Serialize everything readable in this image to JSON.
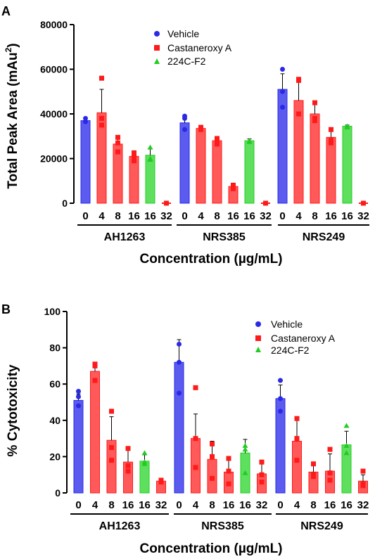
{
  "panels": [
    {
      "letter": "A",
      "ylabel_main": "Total Peak Area (mAu",
      "ylabel_sup": "2",
      "ylabel_end": ")",
      "xlabel": "Concentration (µg/mL)",
      "legend": [
        "Vehicle",
        "Castaneroxy A",
        "224C-F2"
      ]
    },
    {
      "letter": "B",
      "ylabel": "% Cytotoxicity",
      "xlabel": "Concentration (µg/mL)",
      "legend": [
        "Vehicle",
        "Castaneroxy A",
        "224C-F2"
      ]
    }
  ],
  "colors": {
    "vehicle": "#2a2ae6",
    "castaneroxy": "#ff1a1a",
    "f2": "#22cc22"
  },
  "chart_data": [
    {
      "type": "bar",
      "ylabel": "Total Peak Area (mAu²)",
      "xlabel": "Concentration (µg/mL)",
      "ylim": [
        0,
        80000
      ],
      "yticks": [
        0,
        20000,
        40000,
        60000,
        80000
      ],
      "legend_position": "top-center",
      "groups": [
        "AH1263",
        "NRS385",
        "NRS249"
      ],
      "tick_labels": [
        "0",
        "4",
        "8",
        "16",
        "16",
        "32"
      ],
      "series_order": [
        "Vehicle",
        "Castaneroxy A",
        "Castaneroxy A",
        "Castaneroxy A",
        "224C-F2",
        "Castaneroxy A"
      ],
      "values": [
        [
          37000,
          40500,
          26500,
          21000,
          21500,
          0
        ],
        [
          36000,
          33500,
          28000,
          7500,
          28000,
          0
        ],
        [
          51000,
          46000,
          40000,
          29500,
          34500,
          0
        ]
      ],
      "errors": [
        [
          1000,
          10500,
          3500,
          2500,
          3000,
          0
        ],
        [
          3000,
          700,
          1500,
          1500,
          800,
          0
        ],
        [
          7000,
          10000,
          4500,
          4000,
          500,
          0
        ]
      ],
      "points": [
        [
          [
            36500,
            38000
          ],
          [
            38000,
            56000,
            35000
          ],
          [
            27000,
            29500,
            23000
          ],
          [
            22500,
            19000,
            21000
          ],
          [
            25000,
            20000,
            19500
          ],
          [
            0
          ]
        ],
        [
          [
            38000,
            39000,
            33000
          ],
          [
            34000,
            33000
          ],
          [
            28000,
            29000,
            26500
          ],
          [
            8000,
            6500,
            7500
          ],
          [
            28000,
            27500
          ],
          [
            0
          ]
        ],
        [
          [
            60000,
            50000,
            43000
          ],
          [
            55500,
            55000,
            40000
          ],
          [
            45000,
            38000,
            37000
          ],
          [
            33000,
            27000,
            28500
          ],
          [
            34500,
            34000
          ],
          [
            0
          ]
        ]
      ]
    },
    {
      "type": "bar",
      "ylabel": "% Cytotoxicity",
      "xlabel": "Concentration (µg/mL)",
      "ylim": [
        0,
        100
      ],
      "yticks": [
        0,
        20,
        40,
        60,
        80,
        100
      ],
      "legend_position": "top-right",
      "groups": [
        "AH1263",
        "NRS385",
        "NRS249"
      ],
      "tick_labels": [
        "0",
        "4",
        "8",
        "16",
        "16",
        "32"
      ],
      "series_order": [
        "Vehicle",
        "Castaneroxy A",
        "Castaneroxy A",
        "Castaneroxy A",
        "224C-F2",
        "Castaneroxy A"
      ],
      "values": [
        [
          51,
          67,
          29,
          17,
          17.5,
          6.5
        ],
        [
          72,
          30,
          18.5,
          11.5,
          22,
          10.5
        ],
        [
          52,
          28.5,
          11.5,
          12,
          26.5,
          6.5
        ]
      ],
      "errors": [
        [
          3.5,
          4.5,
          13,
          7.5,
          3.5,
          0.5
        ],
        [
          12.5,
          13.5,
          10,
          8.5,
          7.5,
          7.5
        ],
        [
          7.5,
          12,
          4,
          9.5,
          7.5,
          3.5
        ]
      ],
      "points": [
        [
          [
            56,
            53,
            48
          ],
          [
            71,
            70,
            62
          ],
          [
            45,
            25,
            18
          ],
          [
            24.5,
            12,
            15
          ],
          [
            22,
            17,
            16
          ],
          [
            7,
            6
          ]
        ],
        [
          [
            82,
            72,
            55
          ],
          [
            58,
            30,
            14
          ],
          [
            27,
            20,
            8
          ],
          [
            19,
            12,
            5
          ],
          [
            26,
            24,
            11
          ],
          [
            17,
            10,
            6
          ]
        ],
        [
          [
            62,
            52,
            45
          ],
          [
            41,
            30,
            18
          ],
          [
            16,
            10,
            9
          ],
          [
            24,
            11,
            7
          ],
          [
            37,
            26,
            22
          ],
          [
            12,
            5,
            4
          ]
        ]
      ]
    }
  ]
}
